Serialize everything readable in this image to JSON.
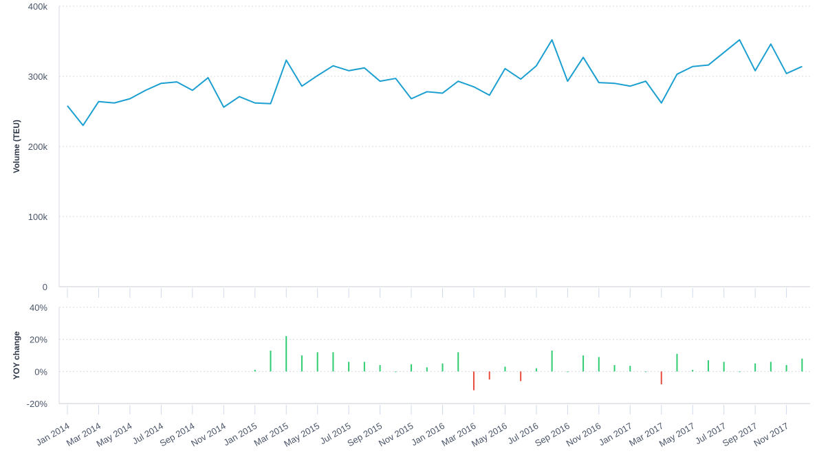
{
  "chart_data": [
    {
      "type": "line",
      "ylabel": "Volume (TEU)",
      "ylim": [
        0,
        400000
      ],
      "yticks": [
        "0",
        "100k",
        "200k",
        "300k",
        "400k"
      ],
      "ytick_values": [
        0,
        100000,
        200000,
        300000,
        400000
      ],
      "color": "#1a9fd0",
      "grid": true,
      "x": [
        "Jan 2014",
        "Feb 2014",
        "Mar 2014",
        "Apr 2014",
        "May 2014",
        "Jun 2014",
        "Jul 2014",
        "Aug 2014",
        "Sep 2014",
        "Oct 2014",
        "Nov 2014",
        "Dec 2014",
        "Jan 2015",
        "Feb 2015",
        "Mar 2015",
        "Apr 2015",
        "May 2015",
        "Jun 2015",
        "Jul 2015",
        "Aug 2015",
        "Sep 2015",
        "Oct 2015",
        "Nov 2015",
        "Dec 2015",
        "Jan 2016",
        "Feb 2016",
        "Mar 2016",
        "Apr 2016",
        "May 2016",
        "Jun 2016",
        "Jul 2016",
        "Aug 2016",
        "Sep 2016",
        "Oct 2016",
        "Nov 2016",
        "Dec 2016",
        "Jan 2017",
        "Feb 2017",
        "Mar 2017",
        "Apr 2017",
        "May 2017",
        "Jun 2017",
        "Jul 2017",
        "Aug 2017",
        "Sep 2017",
        "Oct 2017",
        "Nov 2017",
        "Dec 2017"
      ],
      "values": [
        258000,
        230000,
        264000,
        262000,
        268000,
        280000,
        290000,
        292000,
        280000,
        298000,
        256000,
        271000,
        262000,
        261000,
        323000,
        286000,
        301000,
        315000,
        308000,
        312000,
        293000,
        297000,
        268000,
        278000,
        276000,
        293000,
        285000,
        273000,
        311000,
        296000,
        315000,
        352000,
        293000,
        327000,
        291000,
        290000,
        286000,
        293000,
        262000,
        303000,
        314000,
        316000,
        334000,
        352000,
        308000,
        346000,
        304000,
        314000
      ]
    },
    {
      "type": "bar",
      "ylabel": "YOY change",
      "ylim": [
        -20,
        40
      ],
      "yticks": [
        "-20%",
        "0%",
        "20%",
        "40%"
      ],
      "ytick_values": [
        -20,
        0,
        20,
        40
      ],
      "positive_color": "#2ecc71",
      "negative_color": "#e74c3c",
      "grid": true,
      "x_tick_labels": [
        "Jan 2014",
        "Mar 2014",
        "May 2014",
        "Jul 2014",
        "Sep 2014",
        "Nov 2014",
        "Jan 2015",
        "Mar 2015",
        "May 2015",
        "Jul 2015",
        "Sep 2015",
        "Nov 2015",
        "Jan 2016",
        "Mar 2016",
        "May 2016",
        "Jul 2016",
        "Sep 2016",
        "Nov 2016",
        "Jan 2017",
        "Mar 2017",
        "May 2017",
        "Jul 2017",
        "Sep 2017",
        "Nov 2017"
      ],
      "values": [
        null,
        null,
        null,
        null,
        null,
        null,
        null,
        null,
        null,
        null,
        null,
        null,
        1,
        13,
        22,
        10,
        12,
        12,
        6,
        6,
        4,
        0,
        4.5,
        2.6,
        5,
        12,
        -11.7,
        -5,
        3,
        -6,
        2,
        13,
        0,
        10,
        9,
        4,
        3.5,
        0,
        -8,
        11,
        1,
        7,
        6,
        0,
        5,
        6,
        4,
        8
      ]
    }
  ]
}
